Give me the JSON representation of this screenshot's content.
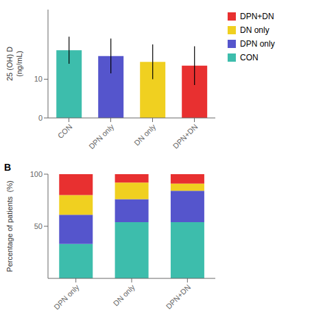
{
  "chart_data": [
    {
      "type": "bar",
      "categories": [
        "CON",
        "DPN only",
        "DN only",
        "DPN+DN"
      ],
      "values": [
        17.5,
        16.0,
        14.5,
        13.5
      ],
      "errors": [
        3.5,
        4.5,
        4.5,
        5.0
      ],
      "colors": [
        "#3dbdac",
        "#5555cc",
        "#f0d020",
        "#e83030"
      ],
      "y_label": "25 (OH) D\n(ng/mL)",
      "ylim": [
        0,
        28
      ],
      "yticks": [
        0,
        10
      ]
    },
    {
      "type": "bar",
      "title": "B",
      "stacked": true,
      "categories": [
        "DPN only",
        "DN only",
        "DPN+DN"
      ],
      "series": [
        {
          "name": "CON",
          "color": "#3dbdac",
          "values": [
            33,
            54,
            54
          ]
        },
        {
          "name": "DPN only",
          "color": "#5555cc",
          "values": [
            28,
            22,
            30
          ]
        },
        {
          "name": "DN only",
          "color": "#f0d020",
          "values": [
            19,
            16,
            7
          ]
        },
        {
          "name": "DPN+DN",
          "color": "#e83030",
          "values": [
            20,
            8,
            9
          ]
        }
      ],
      "y_label": "Percentage of patients  (%)",
      "ylim": [
        0,
        100
      ],
      "yticks": [
        50,
        100
      ],
      "legend": "upper right"
    }
  ]
}
